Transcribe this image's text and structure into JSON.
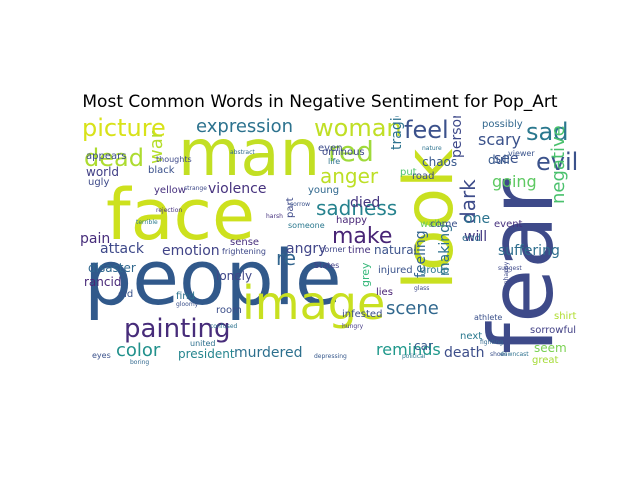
{
  "figure": {
    "title": "Most Common Words in Negative Sentiment for Pop_Art"
  },
  "chart_data": {
    "type": "wordcloud",
    "title": "Most Common Words in Negative Sentiment for Pop_Art",
    "colormap": "viridis",
    "background": "#ffffff",
    "words": [
      {
        "text": "people",
        "rank": 1,
        "color": "#31598b"
      },
      {
        "text": "look",
        "rank": 2,
        "color": "#c9e020"
      },
      {
        "text": "face",
        "rank": 3,
        "color": "#cde11d"
      },
      {
        "text": "man",
        "rank": 4,
        "color": "#c2df23"
      },
      {
        "text": "fear",
        "rank": 5,
        "color": "#3e4a89"
      },
      {
        "text": "image",
        "rank": 6,
        "color": "#c8e020"
      },
      {
        "text": "painting",
        "rank": 7,
        "color": "#472c7a"
      },
      {
        "text": "picture",
        "rank": 8,
        "color": "#d8e219"
      },
      {
        "text": "dead",
        "rank": 9,
        "color": "#addc30"
      },
      {
        "text": "woman",
        "rank": 10,
        "color": "#c0df25"
      },
      {
        "text": "sad",
        "rank": 11,
        "color": "#2a788e"
      },
      {
        "text": "feel",
        "rank": 12,
        "color": "#3b518b"
      },
      {
        "text": "red",
        "rank": 13,
        "color": "#9fda3a"
      },
      {
        "text": "evil",
        "rank": 14,
        "color": "#3b528b"
      },
      {
        "text": "make",
        "rank": 15,
        "color": "#482475"
      },
      {
        "text": "sadness",
        "rank": 16,
        "color": "#26828e"
      },
      {
        "text": "anger",
        "rank": 17,
        "color": "#bddf26"
      },
      {
        "text": "expression",
        "rank": 18,
        "color": "#2c728e"
      },
      {
        "text": "negative",
        "rank": 19,
        "color": "#4ac16d"
      },
      {
        "text": "dark",
        "rank": 20,
        "color": "#3e4c8a"
      },
      {
        "text": "color",
        "rank": 21,
        "color": "#21918c"
      },
      {
        "text": "scene",
        "rank": 22,
        "color": "#31688e"
      },
      {
        "text": "murdered",
        "rank": 23,
        "color": "#2d708e"
      },
      {
        "text": "reminds",
        "rank": 24,
        "color": "#1f988b"
      },
      {
        "text": "pain",
        "rank": 25,
        "color": "#472d7b"
      },
      {
        "text": "war",
        "rank": 26,
        "color": "#b5de2b"
      },
      {
        "text": "scary",
        "rank": 27,
        "color": "#3b528b"
      },
      {
        "text": "tragic",
        "rank": 28,
        "color": "#2c728e"
      },
      {
        "text": "person",
        "rank": 29,
        "color": "#3e4989"
      },
      {
        "text": "going",
        "rank": 30,
        "color": "#5ec962"
      },
      {
        "text": "violence",
        "rank": 31,
        "color": "#46327e"
      },
      {
        "text": "emotion",
        "rank": 32,
        "color": "#414487"
      },
      {
        "text": "attack",
        "rank": 33,
        "color": "#3e4989"
      },
      {
        "text": "angry",
        "rank": 34,
        "color": "#404588"
      },
      {
        "text": "world",
        "rank": 35,
        "color": "#424086"
      },
      {
        "text": "one",
        "rank": 36,
        "color": "#2c738e"
      },
      {
        "text": "will",
        "rank": 37,
        "color": "#443a83"
      },
      {
        "text": "re",
        "rank": 38,
        "color": "#32658e"
      },
      {
        "text": "death",
        "rank": 39,
        "color": "#3d4e8a"
      },
      {
        "text": "seem",
        "rank": 40,
        "color": "#7ad151"
      },
      {
        "text": "making",
        "rank": 41,
        "color": "#2d708e"
      },
      {
        "text": "feeling",
        "rank": 42,
        "color": "#33638d"
      },
      {
        "text": "see",
        "rank": 43,
        "color": "#3b528b"
      },
      {
        "text": "died",
        "rank": 44,
        "color": "#453781"
      },
      {
        "text": "lonely",
        "rank": 45,
        "color": "#3f4788"
      },
      {
        "text": "president",
        "rank": 46,
        "color": "#25858e"
      },
      {
        "text": "disaster",
        "rank": 47,
        "color": "#31688e"
      },
      {
        "text": "rancid",
        "rank": 48,
        "color": "#482878"
      },
      {
        "text": "suffering",
        "rank": 49,
        "color": "#2e6e8e"
      },
      {
        "text": "natural",
        "rank": 50,
        "color": "#3b528b"
      },
      {
        "text": "part",
        "rank": 51,
        "color": "#3e4a89"
      },
      {
        "text": "happy",
        "rank": 52,
        "color": "#482677"
      },
      {
        "text": "injured",
        "rank": 53,
        "color": "#3a538b"
      },
      {
        "text": "lies",
        "rank": 54,
        "color": "#482173"
      },
      {
        "text": "grey",
        "rank": 55,
        "color": "#35b779"
      },
      {
        "text": "group",
        "rank": 56,
        "color": "#2a778e"
      },
      {
        "text": "sorrowful",
        "rank": 57,
        "color": "#424186"
      },
      {
        "text": "shirt",
        "rank": 58,
        "color": "#b0dd2f"
      },
      {
        "text": "event",
        "rank": 59,
        "color": "#46307e"
      },
      {
        "text": "end",
        "rank": 60,
        "color": "#2f6b8e"
      },
      {
        "text": "chaos",
        "rank": 61,
        "color": "#38588c"
      },
      {
        "text": "road",
        "rank": 62,
        "color": "#3e4a89"
      },
      {
        "text": "dull",
        "rank": 63,
        "color": "#38598c"
      },
      {
        "text": "possibly",
        "rank": 64,
        "color": "#31678e"
      },
      {
        "text": "ominous",
        "rank": 65,
        "color": "#3e4a89"
      },
      {
        "text": "walls",
        "rank": 66,
        "color": "#6ccd5a"
      },
      {
        "text": "put",
        "rank": 67,
        "color": "#4fc46a"
      },
      {
        "text": "come",
        "rank": 68,
        "color": "#3b518b"
      },
      {
        "text": "next",
        "rank": 69,
        "color": "#2a788e"
      },
      {
        "text": "car",
        "rank": 70,
        "color": "#37598c"
      },
      {
        "text": "great",
        "rank": 71,
        "color": "#a5db36"
      },
      {
        "text": "even",
        "rank": 72,
        "color": "#3d4d8a"
      },
      {
        "text": "black",
        "rank": 73,
        "color": "#3b518b"
      },
      {
        "text": "yellow",
        "rank": 74,
        "color": "#46307e"
      },
      {
        "text": "young",
        "rank": 75,
        "color": "#31688e"
      },
      {
        "text": "appears",
        "rank": 76,
        "color": "#3d4e8a"
      },
      {
        "text": "ugly",
        "rank": 77,
        "color": "#3e4a89"
      },
      {
        "text": "time",
        "rank": 78,
        "color": "#46327e"
      },
      {
        "text": "old",
        "rank": 79,
        "color": "#3a538b"
      },
      {
        "text": "find",
        "rank": 80,
        "color": "#2c728e"
      },
      {
        "text": "room",
        "rank": 81,
        "color": "#3c4f8a"
      },
      {
        "text": "sense",
        "rank": 82,
        "color": "#472f7d"
      },
      {
        "text": "frightening",
        "rank": 83,
        "color": "#3e4989"
      },
      {
        "text": "eyes",
        "rank": 84,
        "color": "#3b528b"
      },
      {
        "text": "united",
        "rank": 85,
        "color": "#2d708e"
      },
      {
        "text": "States",
        "rank": 86,
        "color": "#424086"
      },
      {
        "text": "corner",
        "rank": 87,
        "color": "#3f4788"
      },
      {
        "text": "someone",
        "rank": 88,
        "color": "#2a788e"
      },
      {
        "text": "athlete",
        "rank": 89,
        "color": "#3b518b"
      },
      {
        "text": "viewer",
        "rank": 90,
        "color": "#3a548c"
      },
      {
        "text": "life",
        "rank": 91,
        "color": "#2c728e"
      },
      {
        "text": "thoughts",
        "rank": 92,
        "color": "#3e4a89"
      },
      {
        "text": "abstract",
        "rank": 93,
        "color": "#2f6c8e"
      },
      {
        "text": "sorrow",
        "rank": 94,
        "color": "#3b528b"
      },
      {
        "text": "nature",
        "rank": 95,
        "color": "#2c728e"
      },
      {
        "text": "infested",
        "rank": 96,
        "color": "#3d4e8a"
      },
      {
        "text": "hungry",
        "rank": 97,
        "color": "#443b84"
      },
      {
        "text": "rejection",
        "rank": 98,
        "color": "#46337f"
      },
      {
        "text": "strange",
        "rank": 99,
        "color": "#3e4989"
      },
      {
        "text": "depressing",
        "rank": 100,
        "color": "#38598c"
      },
      {
        "text": "political",
        "rank": 101,
        "color": "#2a788e"
      },
      {
        "text": "shoes",
        "rank": 102,
        "color": "#3b518b"
      },
      {
        "text": "downcast",
        "rank": 103,
        "color": "#2d708e"
      },
      {
        "text": "glass",
        "rank": 104,
        "color": "#3e4a89"
      },
      {
        "text": "fighting",
        "rank": 105,
        "color": "#31688e"
      },
      {
        "text": "confused",
        "rank": 106,
        "color": "#2c728e"
      },
      {
        "text": "suggest",
        "rank": 107,
        "color": "#3e4989"
      },
      {
        "text": "gloomy",
        "rank": 108,
        "color": "#3b518b"
      },
      {
        "text": "terrible",
        "rank": 109,
        "color": "#2a788e"
      },
      {
        "text": "harsh",
        "rank": 110,
        "color": "#46327e"
      },
      {
        "text": "boring",
        "rank": 111,
        "color": "#31688e"
      },
      {
        "text": "unhappy",
        "rank": 112,
        "color": "#3e4a89"
      }
    ]
  }
}
